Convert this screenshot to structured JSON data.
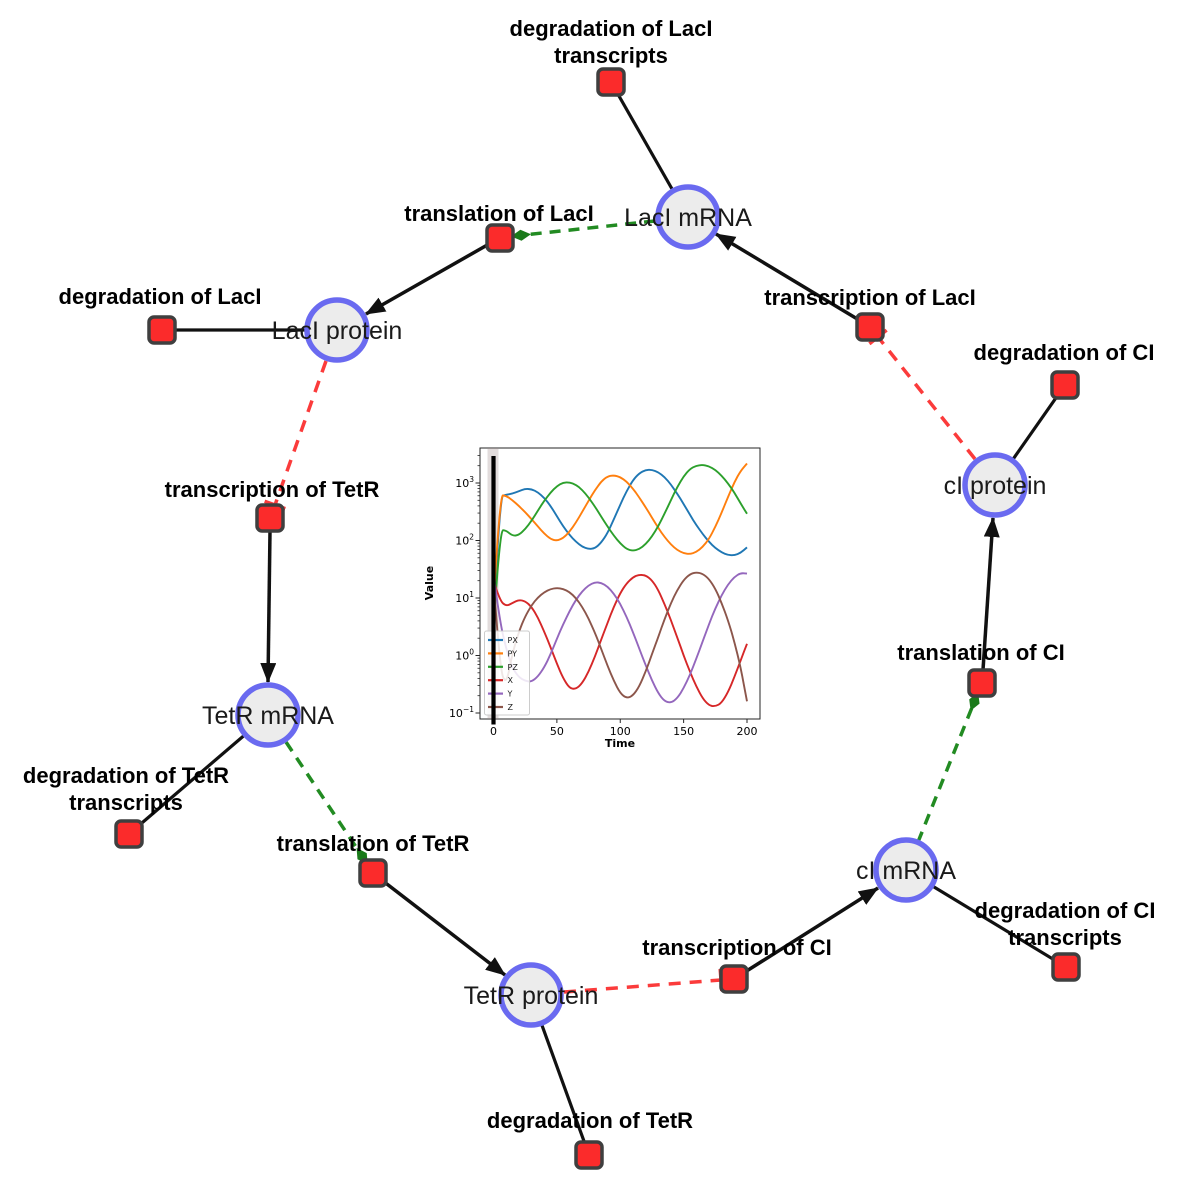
{
  "diagram": {
    "species": [
      {
        "id": "lacI-mRNA",
        "label": "LacI mRNA"
      },
      {
        "id": "lacI-protein",
        "label": "LacI protein"
      },
      {
        "id": "cI-protein",
        "label": "cI protein"
      },
      {
        "id": "tetR-mRNA",
        "label": "TetR mRNA"
      },
      {
        "id": "tetR-protein",
        "label": "TetR protein"
      },
      {
        "id": "cI-mRNA",
        "label": "cI mRNA"
      }
    ],
    "reactions": [
      {
        "id": "degradation-lacI-transcripts",
        "label_line1": "degradation of LacI",
        "label_line2": "transcripts"
      },
      {
        "id": "translation-lacI",
        "label": "translation of LacI"
      },
      {
        "id": "transcription-lacI",
        "label": "transcription of LacI"
      },
      {
        "id": "degradation-lacI",
        "label": "degradation of LacI"
      },
      {
        "id": "degradation-cI",
        "label": "degradation of CI"
      },
      {
        "id": "transcription-tetR",
        "label": "transcription of TetR"
      },
      {
        "id": "translation-cI",
        "label": "translation of CI"
      },
      {
        "id": "degradation-tetR-transcripts",
        "label_line1": "degradation of TetR",
        "label_line2": "transcripts"
      },
      {
        "id": "translation-tetR",
        "label": "translation of TetR"
      },
      {
        "id": "degradation-cI-transcripts",
        "label_line1": "degradation of CI",
        "label_line2": "transcripts"
      },
      {
        "id": "transcription-cI",
        "label": "transcription of CI"
      },
      {
        "id": "degradation-tetR",
        "label": "degradation of TetR"
      }
    ],
    "colors": {
      "species_fill": "#ececec",
      "species_border": "#6a6af0",
      "reaction_fill": "#fb2b2b",
      "reaction_border": "#3f3f3f",
      "production_edge": "#111111",
      "modifier_edge": "#228B22",
      "inhibition_edge": "#fb3b3b"
    }
  },
  "chart_data": {
    "type": "line",
    "title": "",
    "xlabel": "Time",
    "ylabel": "Value",
    "x_ticks": [
      0,
      50,
      100,
      150,
      200
    ],
    "y_tick_exponents": [
      -1,
      0,
      1,
      2,
      3
    ],
    "xlim": [
      -10,
      210
    ],
    "y_scale": "log",
    "ylim": [
      0.075,
      3900
    ],
    "grid": false,
    "legend_position": "lower left",
    "axvline_x": 0,
    "x": [
      0,
      5,
      10,
      15,
      20,
      25,
      30,
      35,
      40,
      45,
      50,
      55,
      60,
      65,
      70,
      75,
      80,
      85,
      90,
      95,
      100,
      105,
      110,
      115,
      120,
      125,
      130,
      135,
      140,
      145,
      150,
      155,
      160,
      165,
      170,
      175,
      180,
      185,
      190,
      195,
      200
    ],
    "series": [
      {
        "name": "PX",
        "color": "#1f77b4",
        "values": [
          4,
          580,
          625,
          655,
          720,
          795,
          780,
          690,
          550,
          400,
          265,
          175,
          125,
          95,
          78,
          71,
          73,
          92,
          135,
          235,
          420,
          720,
          1120,
          1480,
          1690,
          1700,
          1540,
          1270,
          940,
          650,
          430,
          280,
          185,
          130,
          95,
          74,
          62,
          56,
          55,
          61,
          76
        ]
      },
      {
        "name": "PY",
        "color": "#ff7f0e",
        "values": [
          8,
          620,
          600,
          500,
          400,
          310,
          235,
          175,
          132,
          106,
          99,
          110,
          142,
          205,
          315,
          490,
          750,
          1060,
          1310,
          1360,
          1270,
          1060,
          800,
          560,
          380,
          250,
          165,
          115,
          85,
          68,
          60,
          58,
          63,
          77,
          106,
          172,
          305,
          570,
          1030,
          1630,
          2180
        ]
      },
      {
        "name": "PZ",
        "color": "#2ca02c",
        "values": [
          3,
          152,
          150,
          120,
          124,
          158,
          220,
          330,
          490,
          680,
          885,
          1020,
          1030,
          930,
          760,
          560,
          390,
          260,
          175,
          121,
          89,
          71,
          66,
          71,
          86,
          117,
          177,
          295,
          505,
          855,
          1310,
          1760,
          2000,
          2070,
          1950,
          1690,
          1340,
          985,
          685,
          440,
          292
        ]
      },
      {
        "name": "X",
        "color": "#d62728",
        "values": [
          20,
          9,
          7.2,
          8.2,
          9.3,
          8.8,
          7.0,
          4.6,
          2.6,
          1.4,
          0.72,
          0.4,
          0.27,
          0.26,
          0.33,
          0.52,
          0.95,
          1.9,
          3.7,
          7.1,
          12.2,
          18,
          23,
          25.5,
          24.8,
          20.5,
          13.8,
          7.8,
          4.1,
          2.05,
          1.0,
          0.52,
          0.29,
          0.18,
          0.135,
          0.13,
          0.15,
          0.23,
          0.42,
          0.82,
          1.6
        ]
      },
      {
        "name": "Y",
        "color": "#9467bd",
        "values": [
          25,
          4,
          1.3,
          0.6,
          0.42,
          0.36,
          0.35,
          0.43,
          0.62,
          1.05,
          1.95,
          3.5,
          5.9,
          9.3,
          13.1,
          16.6,
          18.8,
          18.4,
          15.8,
          11.9,
          7.9,
          4.7,
          2.55,
          1.32,
          0.68,
          0.37,
          0.22,
          0.16,
          0.15,
          0.18,
          0.27,
          0.46,
          0.88,
          1.75,
          3.5,
          6.6,
          11.2,
          17.2,
          23.2,
          27.2,
          26.6
        ]
      },
      {
        "name": "Z",
        "color": "#8c564b",
        "values": [
          20,
          0.6,
          0.3,
          1.1,
          2.6,
          4.8,
          7.5,
          10.2,
          12.6,
          14.3,
          15,
          14.4,
          12.7,
          10,
          7,
          4.4,
          2.5,
          1.3,
          0.66,
          0.36,
          0.22,
          0.18,
          0.2,
          0.29,
          0.52,
          1.05,
          2.1,
          4.3,
          8.2,
          13.8,
          20.5,
          26,
          28,
          26.5,
          21.5,
          14.5,
          8.2,
          4.1,
          1.75,
          0.62,
          0.16
        ]
      }
    ]
  }
}
